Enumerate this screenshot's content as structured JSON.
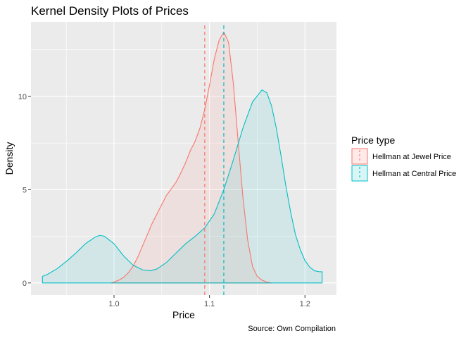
{
  "chart_data": {
    "type": "area",
    "title": "Kernel Density Plots of Prices",
    "xlabel": "Price",
    "ylabel": "Density",
    "caption": "Source: Own Compilation",
    "xlim": [
      0.913,
      1.233
    ],
    "ylim": [
      -0.65,
      14.0
    ],
    "x_ticks": [
      {
        "value": 1.0,
        "label": "1.0"
      },
      {
        "value": 1.1,
        "label": "1.1"
      },
      {
        "value": 1.2,
        "label": "1.2"
      }
    ],
    "y_ticks": [
      {
        "value": 0,
        "label": "0"
      },
      {
        "value": 5,
        "label": "5"
      },
      {
        "value": 10,
        "label": "10"
      }
    ],
    "grid": true,
    "legend": {
      "title": "Price type",
      "position": "right"
    },
    "series": [
      {
        "name": "Hellman at Jewel Price",
        "color": "#F8766D",
        "mean": 1.095,
        "points": [
          [
            0.997,
            0.0
          ],
          [
            1.0,
            0.05
          ],
          [
            1.005,
            0.15
          ],
          [
            1.01,
            0.3
          ],
          [
            1.015,
            0.55
          ],
          [
            1.02,
            0.9
          ],
          [
            1.025,
            1.4
          ],
          [
            1.03,
            2.0
          ],
          [
            1.035,
            2.6
          ],
          [
            1.04,
            3.2
          ],
          [
            1.045,
            3.7
          ],
          [
            1.05,
            4.2
          ],
          [
            1.055,
            4.7
          ],
          [
            1.06,
            5.05
          ],
          [
            1.065,
            5.4
          ],
          [
            1.07,
            5.9
          ],
          [
            1.075,
            6.45
          ],
          [
            1.08,
            7.1
          ],
          [
            1.085,
            7.6
          ],
          [
            1.09,
            8.3
          ],
          [
            1.095,
            9.3
          ],
          [
            1.1,
            10.6
          ],
          [
            1.105,
            12.0
          ],
          [
            1.11,
            13.0
          ],
          [
            1.115,
            13.45
          ],
          [
            1.12,
            12.9
          ],
          [
            1.125,
            10.7
          ],
          [
            1.13,
            7.6
          ],
          [
            1.135,
            4.6
          ],
          [
            1.14,
            2.3
          ],
          [
            1.145,
            0.9
          ],
          [
            1.15,
            0.35
          ],
          [
            1.155,
            0.15
          ],
          [
            1.16,
            0.05
          ],
          [
            1.165,
            0.0
          ]
        ]
      },
      {
        "name": "Hellman at Central Price",
        "color": "#00BFC4",
        "mean": 1.115,
        "points": [
          [
            0.925,
            0.35
          ],
          [
            0.93,
            0.45
          ],
          [
            0.94,
            0.75
          ],
          [
            0.95,
            1.15
          ],
          [
            0.96,
            1.6
          ],
          [
            0.97,
            2.1
          ],
          [
            0.98,
            2.45
          ],
          [
            0.985,
            2.55
          ],
          [
            0.99,
            2.5
          ],
          [
            1.0,
            2.1
          ],
          [
            1.01,
            1.45
          ],
          [
            1.02,
            0.95
          ],
          [
            1.03,
            0.7
          ],
          [
            1.038,
            0.65
          ],
          [
            1.045,
            0.75
          ],
          [
            1.055,
            1.1
          ],
          [
            1.065,
            1.6
          ],
          [
            1.075,
            2.1
          ],
          [
            1.085,
            2.5
          ],
          [
            1.095,
            2.95
          ],
          [
            1.105,
            3.7
          ],
          [
            1.115,
            5.0
          ],
          [
            1.125,
            6.6
          ],
          [
            1.135,
            8.3
          ],
          [
            1.145,
            9.7
          ],
          [
            1.155,
            10.35
          ],
          [
            1.16,
            10.2
          ],
          [
            1.165,
            9.5
          ],
          [
            1.17,
            8.3
          ],
          [
            1.175,
            6.8
          ],
          [
            1.18,
            5.2
          ],
          [
            1.185,
            3.8
          ],
          [
            1.19,
            2.6
          ],
          [
            1.195,
            1.8
          ],
          [
            1.2,
            1.2
          ],
          [
            1.205,
            0.85
          ],
          [
            1.21,
            0.65
          ],
          [
            1.215,
            0.6
          ],
          [
            1.218,
            0.6
          ]
        ]
      }
    ]
  }
}
